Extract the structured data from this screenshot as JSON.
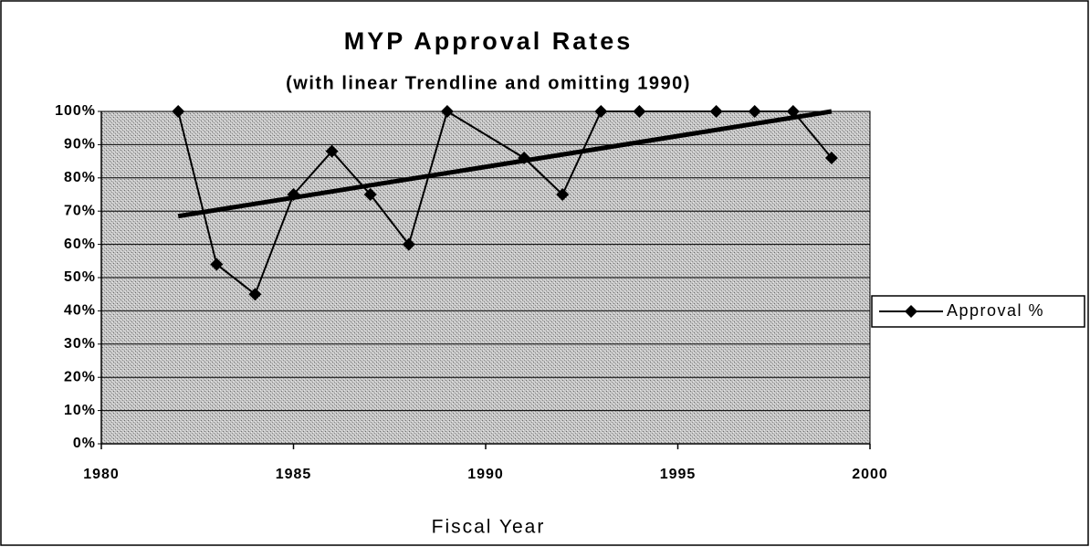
{
  "chart_data": {
    "type": "line",
    "title": "MYP Approval Rates",
    "subtitle": "(with linear Trendline and omitting 1990)",
    "x_label": "Fiscal Year",
    "x": [
      1982,
      1983,
      1984,
      1985,
      1986,
      1987,
      1988,
      1989,
      1991,
      1992,
      1993,
      1994,
      1996,
      1997,
      1998,
      1999
    ],
    "series": [
      {
        "name": "Approval %",
        "color": "#000000",
        "values": [
          100,
          54,
          45,
          75,
          88,
          75,
          60,
          100,
          86,
          75,
          100,
          100,
          100,
          100,
          100,
          86
        ]
      }
    ],
    "trendline": {
      "x": [
        1982,
        1999
      ],
      "values": [
        68.5,
        100
      ],
      "color": "#000000"
    },
    "xlim": [
      1980,
      2000
    ],
    "xticks": [
      1980,
      1985,
      1990,
      1995,
      2000
    ],
    "ylim": [
      0,
      100
    ],
    "yticks": [
      {
        "value": 0,
        "label": "0%"
      },
      {
        "value": 10,
        "label": "10%"
      },
      {
        "value": 20,
        "label": "20%"
      },
      {
        "value": 30,
        "label": "30%"
      },
      {
        "value": 40,
        "label": "40%"
      },
      {
        "value": 50,
        "label": "50%"
      },
      {
        "value": 60,
        "label": "60%"
      },
      {
        "value": 70,
        "label": "70%"
      },
      {
        "value": 80,
        "label": "80%"
      },
      {
        "value": 90,
        "label": "90%"
      },
      {
        "value": 100,
        "label": "100%"
      }
    ],
    "grid": true,
    "legend": "right"
  }
}
